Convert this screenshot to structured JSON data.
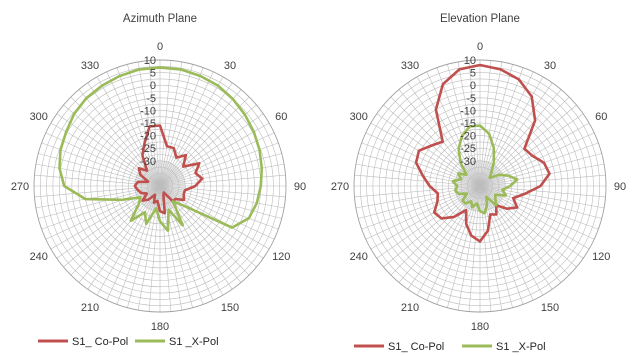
{
  "chart_data": [
    {
      "type": "radar",
      "title": "Azimuth Plane",
      "angle_labels": [
        "0",
        "30",
        "60",
        "90",
        "120",
        "150",
        "180",
        "210",
        "240",
        "270",
        "300",
        "330"
      ],
      "radial_ticks": [
        "10",
        "5",
        "0",
        "-5",
        "-10",
        "-15",
        "-20",
        "-25",
        "-30"
      ],
      "rlim": [
        -40,
        10
      ],
      "angle_step_deg": 5,
      "legend": {
        "position": "bottom"
      },
      "series": [
        {
          "name": "S1_ Co-Pol",
          "color": "#c0504d",
          "theta": [
            0,
            10,
            20,
            30,
            40,
            50,
            60,
            70,
            80,
            90,
            100,
            110,
            120,
            130,
            140,
            150,
            160,
            170,
            180,
            190,
            200,
            210,
            220,
            230,
            240,
            250,
            260,
            270,
            280,
            290,
            300,
            310,
            320,
            330,
            340,
            350
          ],
          "r": [
            -16,
            -24,
            -24,
            -27,
            -24,
            -28,
            -22,
            -25,
            -23,
            -26,
            -30,
            -30,
            -29,
            -32,
            -32,
            -37,
            -36,
            -29,
            -30,
            -34,
            -33,
            -36,
            -33,
            -31,
            -34,
            -32,
            -31,
            -30,
            -31,
            -35,
            -31,
            -29,
            -32,
            -26,
            -22,
            -16
          ]
        },
        {
          "name": "S1 _X-Pol",
          "color": "#9bbb59",
          "theta": [
            0,
            10,
            20,
            30,
            40,
            50,
            60,
            70,
            80,
            90,
            100,
            110,
            120,
            130,
            140,
            150,
            160,
            170,
            180,
            190,
            200,
            210,
            220,
            230,
            240,
            250,
            260,
            270,
            280,
            290,
            300,
            310,
            320,
            330,
            340,
            350
          ],
          "r": [
            7,
            7,
            6.5,
            6,
            5,
            4,
            3,
            2,
            1,
            0,
            -1,
            -2.5,
            -7,
            -28,
            -32,
            -22,
            -30,
            -22,
            -26,
            -31,
            -24,
            -28,
            -22,
            -29,
            -31,
            -24,
            -10,
            -2,
            0.5,
            2,
            3,
            4.5,
            5.5,
            6,
            6.5,
            7
          ]
        }
      ]
    },
    {
      "type": "radar",
      "title": "Elevation Plane",
      "angle_labels": [
        "0",
        "30",
        "60",
        "90",
        "120",
        "150",
        "180",
        "210",
        "240",
        "270",
        "300",
        "330"
      ],
      "radial_ticks": [
        "10",
        "5",
        "0",
        "-5",
        "-10",
        "-15",
        "-20",
        "-25",
        "-30"
      ],
      "rlim": [
        -40,
        10
      ],
      "angle_step_deg": 5,
      "legend": {
        "position": "bottom"
      },
      "series": [
        {
          "name": "S1_ Co-Pol",
          "color": "#c0504d",
          "theta": [
            0,
            10,
            20,
            30,
            40,
            50,
            60,
            70,
            80,
            90,
            100,
            110,
            120,
            130,
            140,
            150,
            160,
            170,
            180,
            190,
            200,
            210,
            220,
            230,
            240,
            250,
            260,
            270,
            280,
            290,
            300,
            310,
            320,
            330,
            340,
            350
          ],
          "r": [
            8,
            7,
            5,
            1,
            -6,
            -17,
            -16,
            -13,
            -12,
            -16,
            -22,
            -26,
            -23,
            -26,
            -30,
            -27,
            -28,
            -22,
            -18,
            -20,
            -24,
            -29,
            -24,
            -20,
            -19,
            -22,
            -23,
            -20,
            -17,
            -13,
            -12,
            -15,
            -17,
            -5,
            3,
            7
          ]
        },
        {
          "name": "S1 _X-Pol",
          "color": "#9bbb59",
          "theta": [
            0,
            10,
            20,
            30,
            40,
            50,
            60,
            70,
            80,
            90,
            100,
            110,
            120,
            130,
            140,
            150,
            160,
            170,
            180,
            190,
            200,
            210,
            220,
            230,
            240,
            250,
            260,
            270,
            280,
            290,
            300,
            310,
            320,
            330,
            340,
            350
          ],
          "r": [
            -16,
            -19,
            -24,
            -29,
            -33,
            -35,
            -31,
            -28,
            -25,
            -28,
            -31,
            -29,
            -33,
            -32,
            -30,
            -35,
            -32,
            -29,
            -30,
            -33,
            -31,
            -33,
            -31,
            -31,
            -34,
            -31,
            -30,
            -31,
            -29,
            -32,
            -30,
            -33,
            -28,
            -23,
            -19,
            -16
          ]
        }
      ]
    }
  ]
}
